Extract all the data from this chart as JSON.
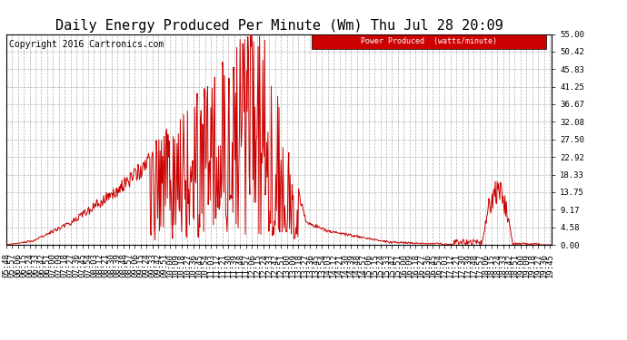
{
  "title": "Daily Energy Produced Per Minute (Wm) Thu Jul 28 20:09",
  "copyright": "Copyright 2016 Cartronics.com",
  "legend_label": "Power Produced  (watts/minute)",
  "legend_bg": "#cc0000",
  "legend_text_color": "#ffffff",
  "line_color": "#cc0000",
  "bg_color": "#ffffff",
  "grid_color": "#b0b0b0",
  "yticks": [
    0.0,
    4.58,
    9.17,
    13.75,
    18.33,
    22.92,
    27.5,
    32.08,
    36.67,
    41.25,
    45.83,
    50.42,
    55.0
  ],
  "ytick_labels": [
    "0.00",
    "4.58",
    "9.17",
    "13.75",
    "18.33",
    "22.92",
    "27.50",
    "32.08",
    "36.67",
    "41.25",
    "45.83",
    "50.42",
    "55.00"
  ],
  "ymax": 55.0,
  "ymin": 0.0,
  "title_fontsize": 11,
  "axis_fontsize": 6.5,
  "copyright_fontsize": 7
}
